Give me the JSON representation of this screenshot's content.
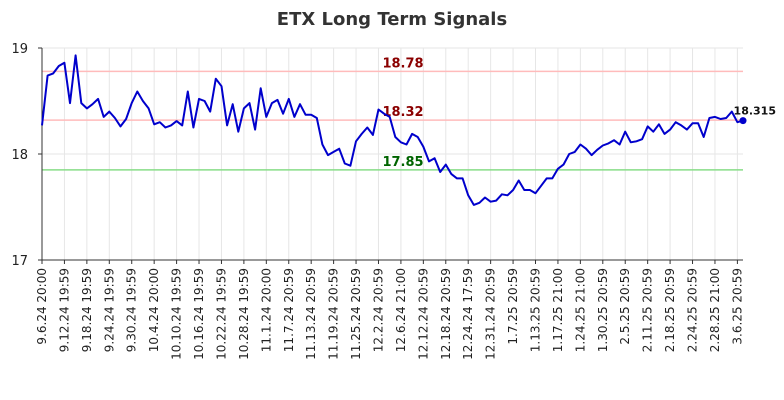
{
  "chart_data": {
    "type": "line",
    "title": "ETX Long Term Signals",
    "xlabel": "",
    "ylabel": "",
    "ylim": [
      17,
      19
    ],
    "yticks": [
      "17",
      "18",
      "19"
    ],
    "grid": true,
    "legend": "none",
    "line_color": "#0000cc",
    "xtick_labels": [
      "9.6.24 20:00",
      "9.12.24 19:59",
      "9.18.24 19:59",
      "9.24.24 19:59",
      "9.30.24 19:59",
      "10.4.24 20:00",
      "10.10.24 19:59",
      "10.16.24 19:59",
      "10.22.24 19:59",
      "10.28.24 19:59",
      "11.1.24 20:00",
      "11.7.24 20:59",
      "11.13.24 20:59",
      "11.19.24 20:59",
      "11.25.24 20:59",
      "12.2.24 20:59",
      "12.6.24 21:00",
      "12.12.24 20:59",
      "12.18.24 20:59",
      "12.24.24 17:59",
      "12.31.24 20:59",
      "1.7.25 20:59",
      "1.13.25 20:59",
      "1.17.25 21:00",
      "1.24.25 21:00",
      "1.30.25 20:59",
      "2.5.25 20:59",
      "2.11.25 20:59",
      "2.18.25 20:59",
      "2.24.25 20:59",
      "2.28.25 21:00",
      "3.6.25 20:59"
    ],
    "xtick_positions": [
      0,
      4,
      8,
      12,
      16,
      20,
      24,
      28,
      32,
      36,
      40,
      44,
      48,
      52,
      56,
      60,
      64,
      68,
      72,
      76,
      80,
      84,
      88,
      92,
      96,
      100,
      104,
      108,
      112,
      116,
      120,
      124
    ],
    "values": [
      18.27,
      18.74,
      18.76,
      18.83,
      18.86,
      18.48,
      18.93,
      18.48,
      18.43,
      18.47,
      18.52,
      18.35,
      18.4,
      18.34,
      18.26,
      18.33,
      18.48,
      18.59,
      18.5,
      18.43,
      18.28,
      18.3,
      18.25,
      18.27,
      18.31,
      18.27,
      18.59,
      18.25,
      18.52,
      18.5,
      18.4,
      18.71,
      18.64,
      18.27,
      18.47,
      18.21,
      18.43,
      18.48,
      18.23,
      18.62,
      18.35,
      18.48,
      18.51,
      18.38,
      18.52,
      18.35,
      18.47,
      18.37,
      18.37,
      18.34,
      18.09,
      17.99,
      18.02,
      18.05,
      17.91,
      17.89,
      18.12,
      18.19,
      18.25,
      18.18,
      18.42,
      18.38,
      18.35,
      18.16,
      18.11,
      18.09,
      18.19,
      18.16,
      18.07,
      17.93,
      17.96,
      17.83,
      17.9,
      17.81,
      17.77,
      17.77,
      17.61,
      17.52,
      17.54,
      17.59,
      17.55,
      17.56,
      17.62,
      17.61,
      17.66,
      17.75,
      17.66,
      17.66,
      17.63,
      17.7,
      17.77,
      17.77,
      17.86,
      17.9,
      18.0,
      18.02,
      18.09,
      18.05,
      17.99,
      18.04,
      18.08,
      18.1,
      18.13,
      18.09,
      18.21,
      18.11,
      18.12,
      18.14,
      18.26,
      18.21,
      18.28,
      18.19,
      18.23,
      18.3,
      18.27,
      18.23,
      18.29,
      18.29,
      18.16,
      18.34,
      18.35,
      18.33,
      18.34,
      18.4,
      18.3,
      18.315
    ],
    "reference_lines": [
      {
        "value": 18.78,
        "label": "18.78",
        "color": "#ffbbbb",
        "label_color": "#8b0000"
      },
      {
        "value": 18.32,
        "label": "18.32",
        "color": "#ffbbbb",
        "label_color": "#8b0000"
      },
      {
        "value": 17.85,
        "label": "17.85",
        "color": "#88dd88",
        "label_color": "#006400"
      }
    ],
    "last_value_label": "18.315"
  }
}
